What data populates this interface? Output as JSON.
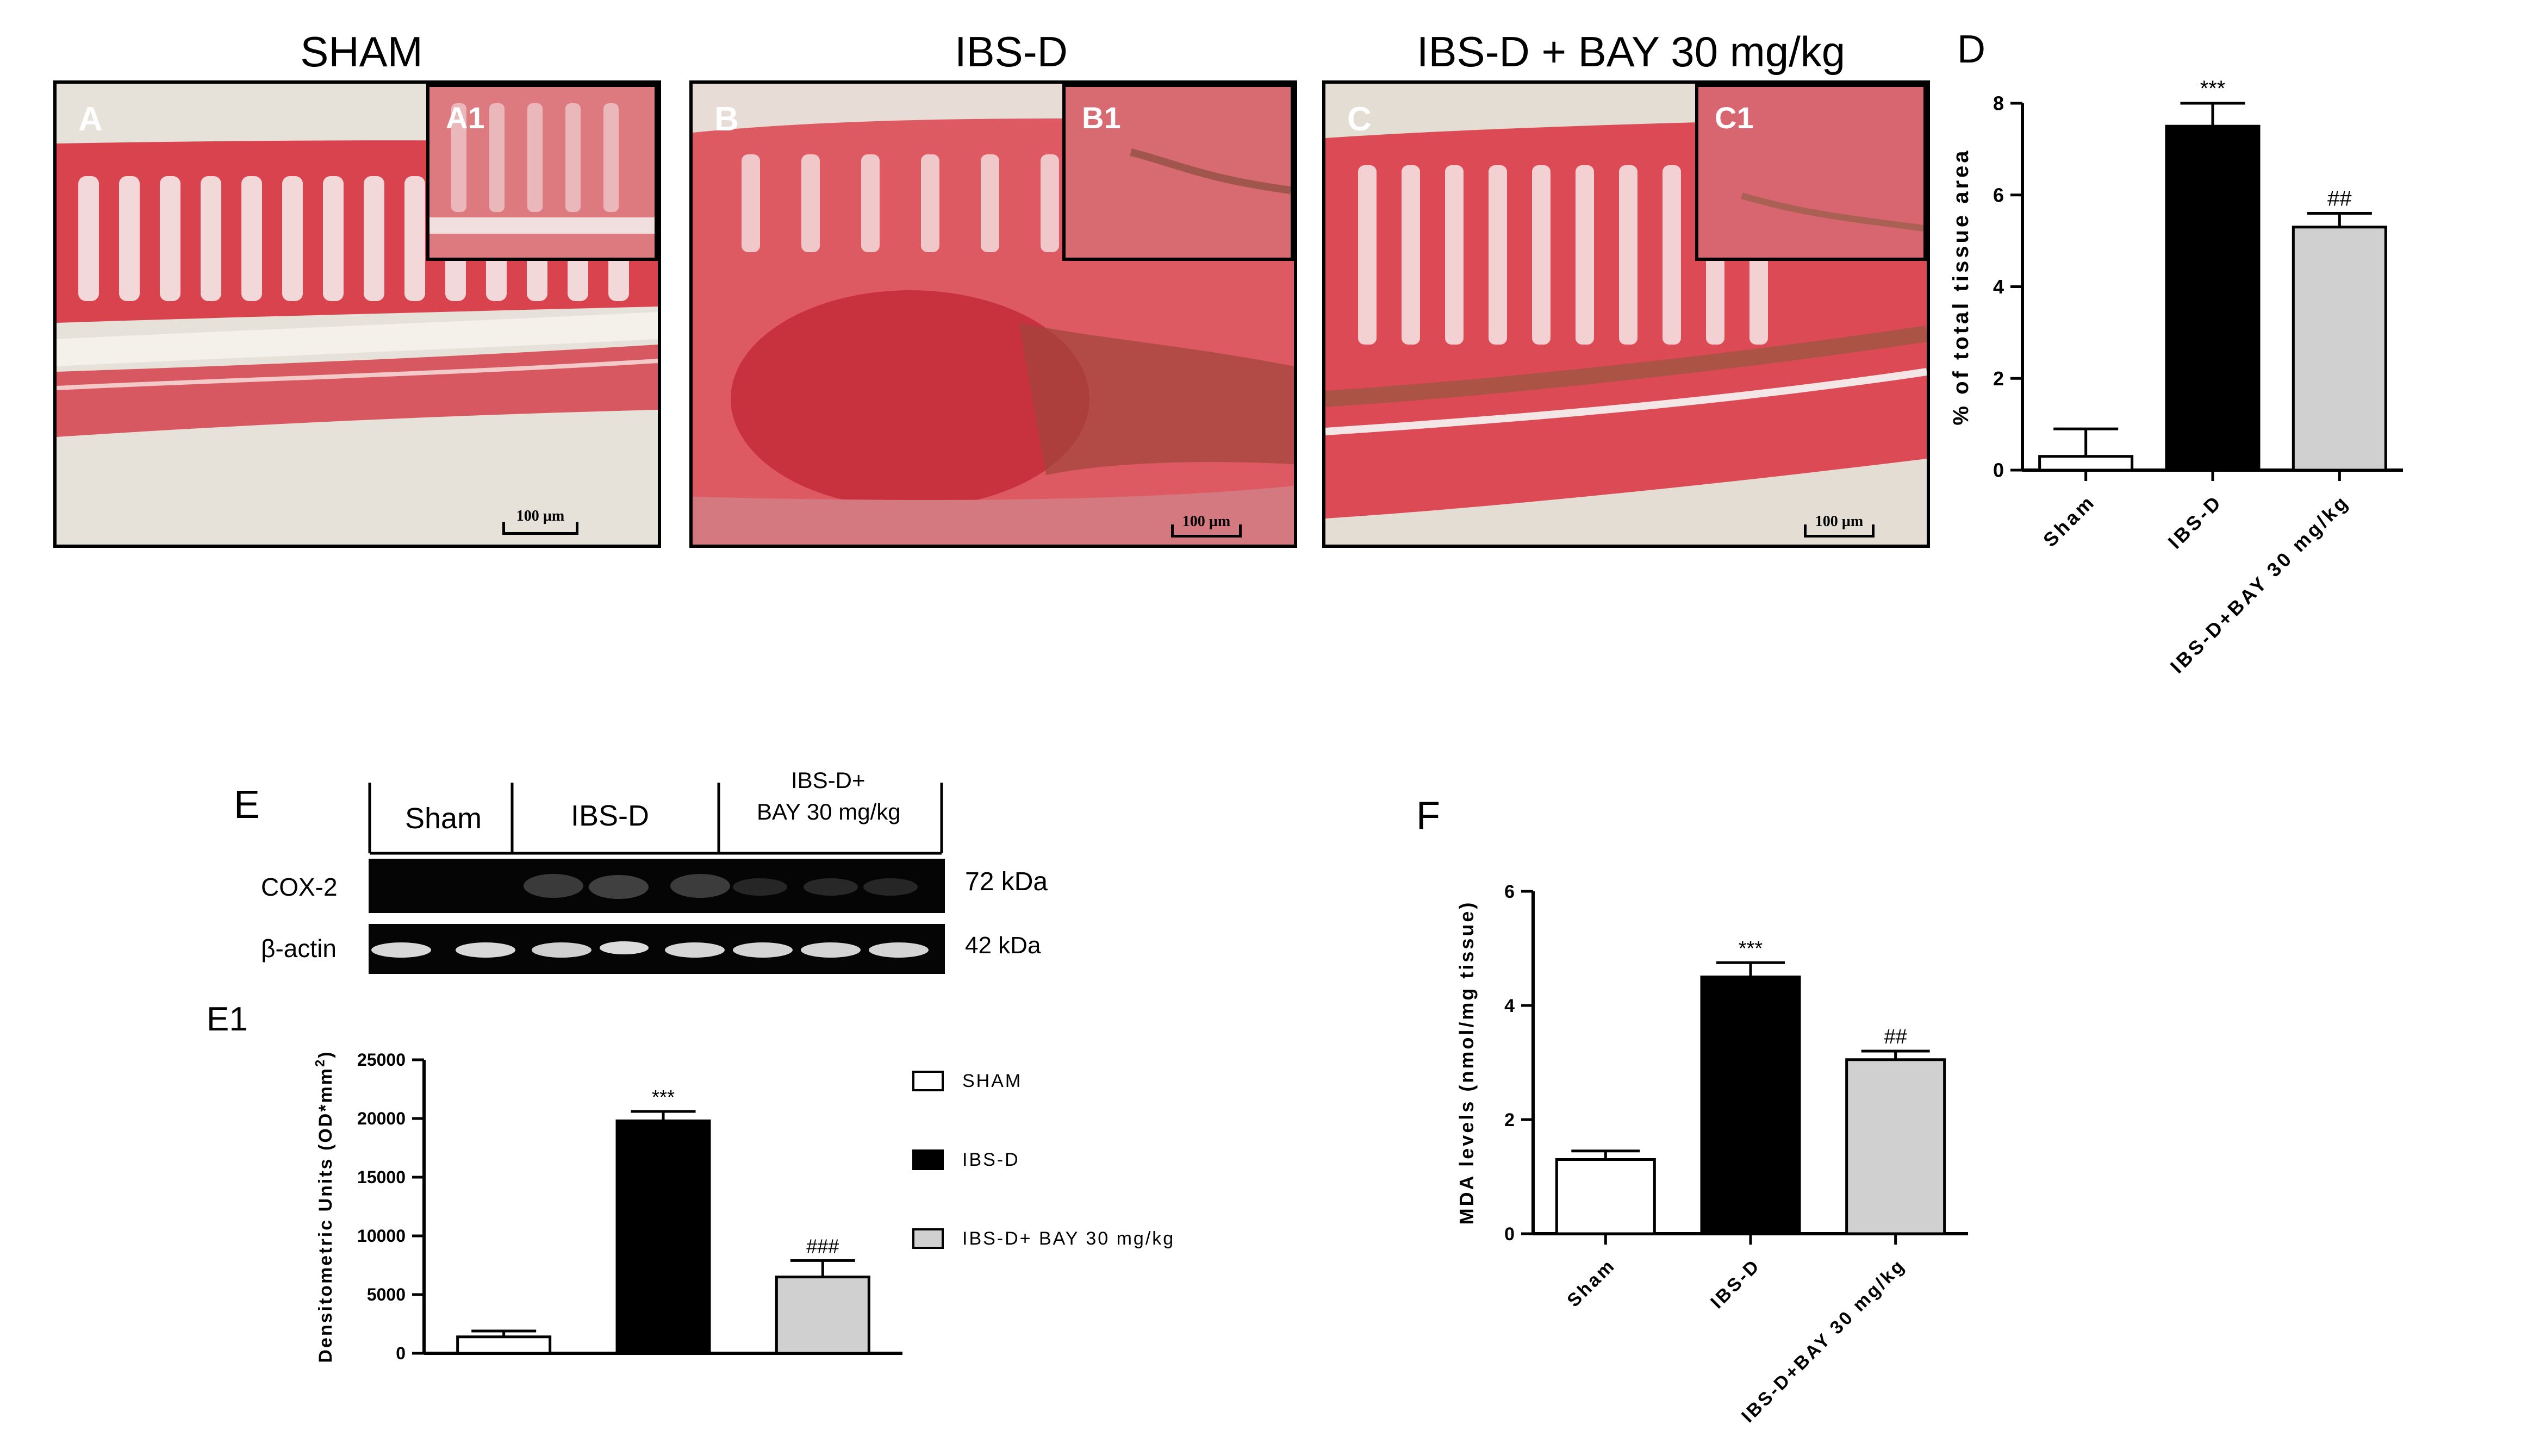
{
  "micrographs": [
    {
      "title": "SHAM",
      "label": "A",
      "inset_label": "A1",
      "scale": "100 µm"
    },
    {
      "title": "IBS-D",
      "label": "B",
      "inset_label": "B1",
      "scale": "100 µm"
    },
    {
      "title": "IBS-D + BAY 30 mg/kg",
      "label": "C",
      "inset_label": "C1",
      "scale": "100 µm"
    }
  ],
  "panel_letters": {
    "D": "D",
    "E": "E",
    "E1": "E1",
    "F": "F"
  },
  "blot": {
    "lane_groups": [
      {
        "label": "Sham",
        "lanes": 2
      },
      {
        "label": "IBS-D",
        "lanes": 3
      },
      {
        "label": "IBS-D+\nBAY 30 mg/kg",
        "lanes": 3
      }
    ],
    "group_label_line1": "IBS-D+",
    "group_label_line2": "BAY 30 mg/kg",
    "rows": [
      {
        "name": "COX-2",
        "size": "72 kDa"
      },
      {
        "name": "β-actin",
        "size": "42 kDa"
      }
    ]
  },
  "chart_data": [
    {
      "id": "D",
      "type": "bar",
      "categories": [
        "Sham",
        "IBS-D",
        "IBS-D+BAY 30 mg/kg"
      ],
      "values": [
        0.3,
        7.5,
        5.3
      ],
      "errors": [
        0.6,
        0.5,
        0.3
      ],
      "significance": [
        "",
        "***",
        "##"
      ],
      "colors": [
        "#ffffff",
        "#000000",
        "#d0d0d0"
      ],
      "xlabel": "",
      "ylabel": "% of total tissue area",
      "ylim": [
        0,
        8
      ],
      "yticks": [
        0,
        2,
        4,
        6,
        8
      ],
      "legend": "none"
    },
    {
      "id": "E1",
      "type": "bar",
      "categories": [
        "SHAM",
        "IBS-D",
        "IBS-D+ BAY 30 mg/kg"
      ],
      "values": [
        1400,
        19800,
        6500
      ],
      "errors": [
        500,
        800,
        1400
      ],
      "significance": [
        "",
        "***",
        "###"
      ],
      "colors": [
        "#ffffff",
        "#000000",
        "#d0d0d0"
      ],
      "xlabel": "",
      "ylabel": "Densitometric Units (OD*mm",
      "ylabel_superscript": "2",
      "ylabel_close": ")",
      "ylim": [
        0,
        25000
      ],
      "yticks": [
        0,
        5000,
        10000,
        15000,
        20000,
        25000
      ],
      "legend": "right",
      "legend_entries": [
        "SHAM",
        "IBS-D",
        "IBS-D+ BAY 30 mg/kg"
      ]
    },
    {
      "id": "F",
      "type": "bar",
      "categories": [
        "Sham",
        "IBS-D",
        "IBS-D+BAY 30 mg/kg"
      ],
      "values": [
        1.3,
        4.5,
        3.05
      ],
      "errors": [
        0.15,
        0.25,
        0.15
      ],
      "significance": [
        "",
        "***",
        "##"
      ],
      "colors": [
        "#ffffff",
        "#000000",
        "#d0d0d0"
      ],
      "xlabel": "",
      "ylabel": "MDA levels (nmol/mg tissue)",
      "ylim": [
        0,
        6
      ],
      "yticks": [
        0,
        2,
        4,
        6
      ],
      "legend": "none"
    }
  ]
}
